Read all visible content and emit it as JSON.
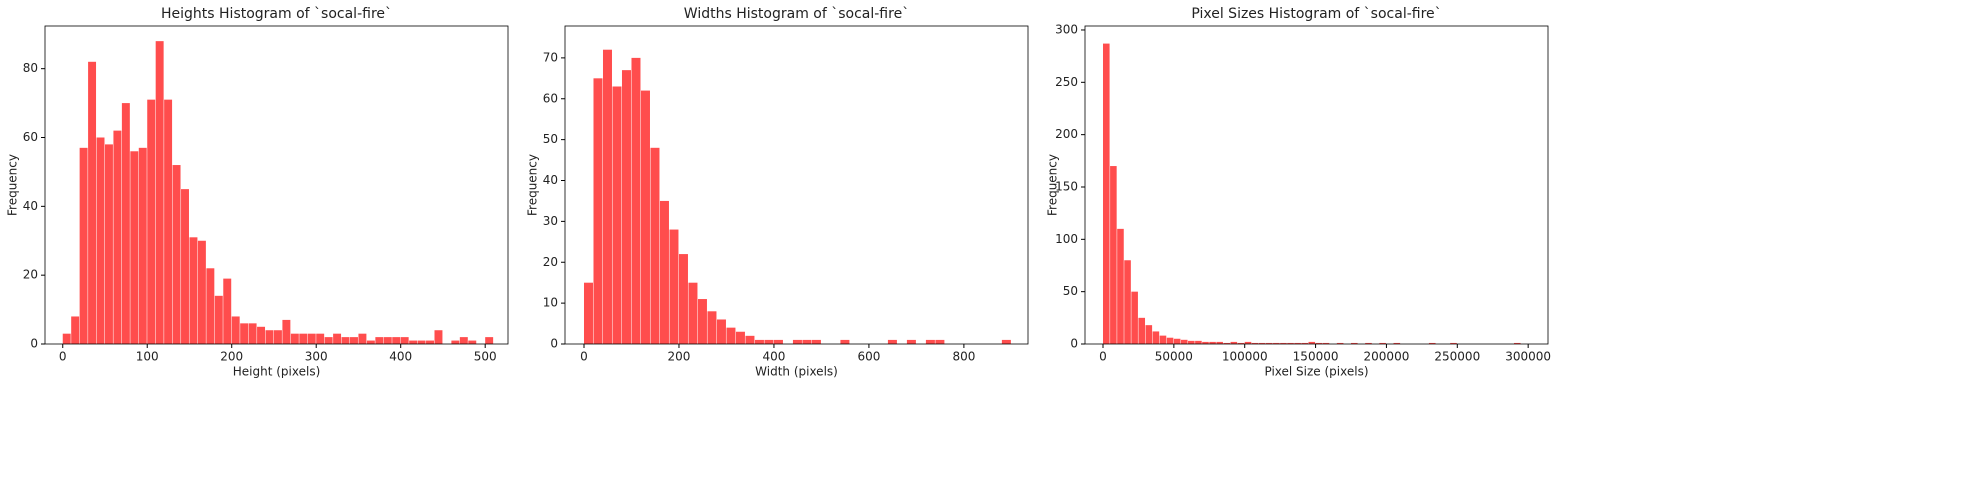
{
  "chart_data": [
    {
      "type": "histogram",
      "title": "Heights Histogram of `socal-fire`",
      "x_label": "Height (pixels)",
      "y_label": "Frequency",
      "color": "#ff4d4d",
      "bins": [
        0,
        10,
        20,
        30,
        40,
        50,
        60,
        70,
        80,
        90,
        100,
        110,
        120,
        130,
        140,
        150,
        160,
        170,
        180,
        190,
        200,
        210,
        220,
        230,
        240,
        250,
        260,
        270,
        280,
        290,
        300,
        310,
        320,
        330,
        340,
        350,
        360,
        370,
        380,
        390,
        400,
        410,
        420,
        430,
        440,
        450,
        460,
        470,
        480,
        490,
        500,
        510
      ],
      "counts": [
        3,
        8,
        57,
        82,
        60,
        58,
        62,
        70,
        56,
        57,
        71,
        88,
        71,
        52,
        45,
        31,
        30,
        22,
        14,
        19,
        8,
        6,
        6,
        5,
        4,
        4,
        7,
        3,
        3,
        3,
        3,
        2,
        3,
        2,
        2,
        3,
        1,
        2,
        2,
        2,
        2,
        1,
        1,
        1,
        4,
        0,
        1,
        2,
        1,
        0,
        2
      ],
      "xlim": [
        -21,
        527
      ],
      "ylim": [
        0,
        92.4
      ],
      "xticks": [
        0,
        100,
        200,
        300,
        400,
        500
      ],
      "yticks": [
        0,
        20,
        40,
        60,
        80
      ]
    },
    {
      "type": "histogram",
      "title": "Widths Histogram of `socal-fire`",
      "x_label": "Width (pixels)",
      "y_label": "Frequency",
      "color": "#ff4d4d",
      "bins": [
        0,
        20,
        40,
        60,
        80,
        100,
        120,
        140,
        160,
        180,
        200,
        220,
        240,
        260,
        280,
        300,
        320,
        340,
        360,
        380,
        400,
        420,
        440,
        460,
        480,
        500,
        520,
        540,
        560,
        580,
        600,
        620,
        640,
        660,
        680,
        700,
        720,
        740,
        760,
        780,
        800,
        820,
        840,
        860,
        880,
        900
      ],
      "counts": [
        15,
        65,
        72,
        63,
        67,
        70,
        62,
        48,
        35,
        28,
        22,
        15,
        11,
        8,
        6,
        4,
        3,
        2,
        1,
        1,
        1,
        0,
        1,
        1,
        1,
        0,
        0,
        1,
        0,
        0,
        0,
        0,
        1,
        0,
        1,
        0,
        1,
        1,
        0,
        0,
        0,
        0,
        0,
        0,
        1
      ],
      "xlim": [
        -40,
        935
      ],
      "ylim": [
        0,
        77.8
      ],
      "xticks": [
        0,
        200,
        400,
        600,
        800
      ],
      "yticks": [
        0,
        10,
        20,
        30,
        40,
        50,
        60,
        70
      ]
    },
    {
      "type": "histogram",
      "title": "Pixel Sizes Histogram of `socal-fire`",
      "x_label": "Pixel Size (pixels)",
      "y_label": "Frequency",
      "color": "#ff4d4d",
      "bins": [
        0,
        5000,
        10000,
        15000,
        20000,
        25000,
        30000,
        35000,
        40000,
        45000,
        50000,
        55000,
        60000,
        65000,
        70000,
        75000,
        80000,
        85000,
        90000,
        95000,
        100000,
        105000,
        110000,
        115000,
        120000,
        125000,
        130000,
        135000,
        140000,
        145000,
        150000,
        155000,
        160000,
        165000,
        170000,
        175000,
        180000,
        185000,
        190000,
        195000,
        200000,
        205000,
        210000,
        215000,
        220000,
        225000,
        230000,
        235000,
        240000,
        245000,
        250000,
        255000,
        260000,
        265000,
        270000,
        275000,
        280000,
        285000,
        290000,
        295000,
        300000
      ],
      "counts": [
        287,
        170,
        110,
        80,
        50,
        25,
        18,
        12,
        8,
        6,
        5,
        4,
        3,
        3,
        2,
        2,
        2,
        1,
        2,
        1,
        2,
        1,
        1,
        1,
        1,
        1,
        1,
        1,
        1,
        2,
        1,
        1,
        0,
        1,
        0,
        1,
        0,
        1,
        0,
        1,
        0,
        1,
        0,
        0,
        0,
        0,
        1,
        0,
        0,
        1,
        0,
        0,
        0,
        0,
        0,
        0,
        0,
        0,
        1,
        0
      ],
      "xlim": [
        -12700,
        314000
      ],
      "ylim": [
        0,
        303.8
      ],
      "xticks": [
        0,
        50000,
        100000,
        150000,
        200000,
        250000,
        300000
      ],
      "yticks": [
        0,
        50,
        100,
        150,
        200,
        250,
        300
      ]
    }
  ]
}
